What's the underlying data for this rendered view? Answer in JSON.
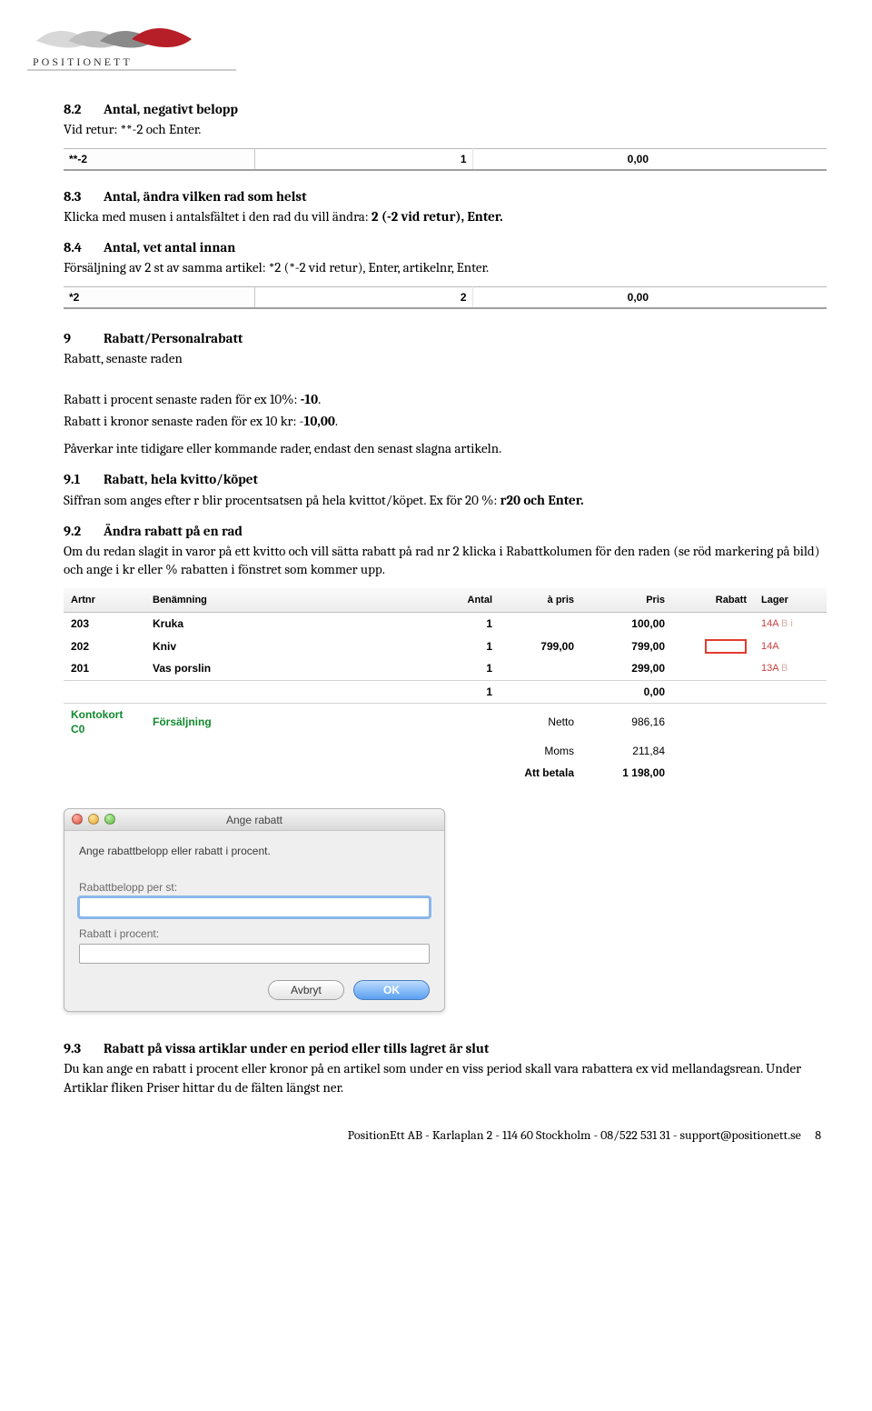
{
  "logo_text": "POSITIONETT",
  "s82": {
    "num": "8.2",
    "title": "Antal, negativt belopp",
    "body": "Vid retur: **-2 och Enter."
  },
  "line1": {
    "input": "**-2",
    "qty": "1",
    "price": "0,00"
  },
  "s83": {
    "num": "8.3",
    "title": "Antal, ändra vilken rad som helst",
    "body_a": "Klicka med musen i antalsfältet i den rad du vill ändra: ",
    "body_b": "2 (-2 vid retur), Enter."
  },
  "s84": {
    "num": "8.4",
    "title": "Antal, vet antal innan",
    "body": "Försäljning av 2 st av samma artikel: *2 (*-2 vid retur), Enter, artikelnr, Enter."
  },
  "line2": {
    "input": "*2",
    "qty": "2",
    "price": "0,00"
  },
  "s9": {
    "num": "9",
    "title": "Rabatt/Personalrabatt",
    "sub": "Rabatt, senaste raden",
    "p1a": "Rabatt i procent senaste raden för ex 10%: ",
    "p1b": "-10",
    "p1c": ".",
    "p2a": "Rabatt i kronor senaste raden för ex 10 kr: -",
    "p2b": "10,00",
    "p2c": ".",
    "p3": "Påverkar inte tidigare eller kommande rader, endast den senast slagna artikeln."
  },
  "s91": {
    "num": "9.1",
    "title": "Rabatt, hela kvitto/köpet",
    "body_a": "Siffran som anges efter r blir procentsatsen på hela kvittot/köpet. Ex för 20 %: ",
    "body_b": "r20 och Enter."
  },
  "s92": {
    "num": "9.2",
    "title": "Ändra rabatt på en rad",
    "body": "Om du redan slagit in varor på ett kvitto och vill sätta rabatt på rad nr 2 klicka i Rabattkolumen för den raden (se röd markering på bild) och ange i kr eller % rabatten i fönstret som kommer upp."
  },
  "receipt": {
    "headers": {
      "artnr": "Artnr",
      "benamning": "Benämning",
      "antal": "Antal",
      "apris": "à pris",
      "pris": "Pris",
      "rabatt": "Rabatt",
      "lager": "Lager"
    },
    "rows": [
      {
        "artnr": "203",
        "name": "Kruka",
        "antal": "1",
        "apris": "",
        "pris": "100,00",
        "rabatt": "",
        "lager": "14A",
        "lager_suffix": "B i"
      },
      {
        "artnr": "202",
        "name": "Kniv",
        "antal": "1",
        "apris": "799,00",
        "pris": "799,00",
        "rabatt": "box",
        "lager": "14A",
        "lager_suffix": ""
      },
      {
        "artnr": "201",
        "name": "Vas porslin",
        "antal": "1",
        "apris": "",
        "pris": "299,00",
        "rabatt": "",
        "lager": "13A",
        "lager_suffix": "B"
      }
    ],
    "loose": {
      "antal": "1",
      "pris": "0,00"
    },
    "payment": {
      "label": "Kontokort C0",
      "text": "Försäljning"
    },
    "totals": [
      {
        "label": "Netto",
        "value": "986,16",
        "bold": false
      },
      {
        "label": "Moms",
        "value": "211,84",
        "bold": false
      },
      {
        "label": "Att betala",
        "value": "1 198,00",
        "bold": true
      }
    ]
  },
  "dialog": {
    "title": "Ange rabatt",
    "prompt": "Ange rabattbelopp eller rabatt i procent.",
    "field1": "Rabattbelopp per st:",
    "field2": "Rabatt i procent:",
    "cancel": "Avbryt",
    "ok": "OK"
  },
  "s93": {
    "num": "9.3",
    "title": "Rabatt på vissa artiklar under en period eller tills lagret är slut",
    "body": "Du kan ange en rabatt i procent eller kronor på en artikel som under en viss period skall vara rabattera ex vid mellandagsrean. Under Artiklar fliken Priser hittar du de fälten längst ner."
  },
  "footer": {
    "text": "PositionEtt AB  -  Karlaplan 2  -  114 60 Stockholm  -  08/522 531 31  -  support@positionett.se",
    "page": "8"
  }
}
